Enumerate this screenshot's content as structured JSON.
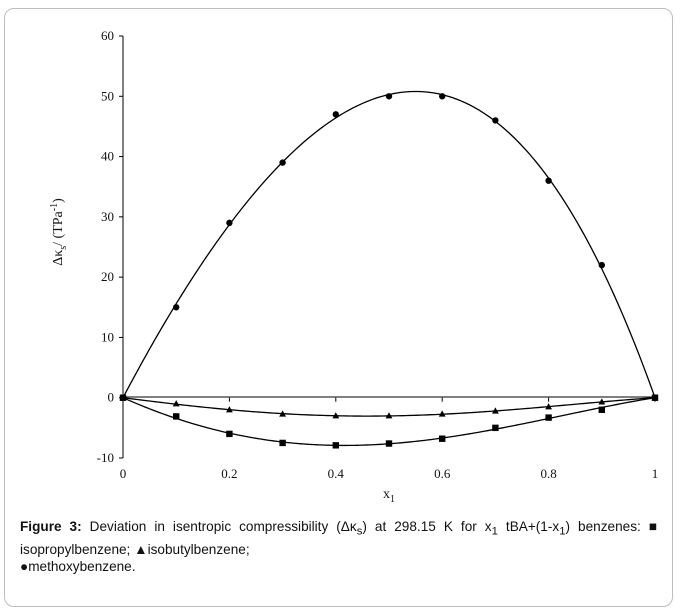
{
  "caption": {
    "label": "Figure 3:",
    "line1": "Deviation in isentropic compressibility (Δκ",
    "line1_sub": "s",
    "line1_end": ") at 298.15 K",
    "line2a": "for x",
    "line2_sub1": "1",
    "line2b": " tBA+(1-x",
    "line2_sub2": "1",
    "line2c": ") benzenes: ■ isopropylbenzene; ▲isobutylbenzene;",
    "line3": "●methoxybenzene."
  },
  "chart_data": {
    "type": "scatter",
    "xlabel": "x",
    "xlabel_sub": "1",
    "ylabel": "Δκ",
    "ylabel_sub": "s",
    "ylabel_end": "/ (TPa",
    "ylabel_sup": "-1",
    "ylabel_close": ")",
    "xlim": [
      0,
      1
    ],
    "ylim": [
      -10,
      60
    ],
    "xticks": [
      0,
      0.2,
      0.4,
      0.6,
      0.8,
      1
    ],
    "xtick_labels": [
      "0",
      "0.2",
      "0.4",
      "0.6",
      "0.8",
      "1"
    ],
    "yticks": [
      -10,
      0,
      10,
      20,
      30,
      40,
      50,
      60
    ],
    "ytick_labels": [
      "-10",
      "0",
      "10",
      "20",
      "30",
      "40",
      "50",
      "60"
    ],
    "grid": false,
    "series": [
      {
        "name": "methoxybenzene",
        "marker": "circle",
        "color": "#000000",
        "x": [
          0,
          0.1,
          0.2,
          0.3,
          0.4,
          0.5,
          0.6,
          0.7,
          0.8,
          0.9,
          1
        ],
        "y": [
          0,
          15,
          29,
          39,
          47,
          50,
          50,
          46,
          36,
          22,
          0
        ]
      },
      {
        "name": "isobutylbenzene",
        "marker": "triangle",
        "color": "#000000",
        "x": [
          0,
          0.1,
          0.2,
          0.3,
          0.4,
          0.5,
          0.6,
          0.7,
          0.8,
          0.9,
          1
        ],
        "y": [
          0,
          -1.0,
          -2.0,
          -2.7,
          -3.0,
          -3.0,
          -2.7,
          -2.2,
          -1.5,
          -0.7,
          0
        ]
      },
      {
        "name": "isopropylbenzene",
        "marker": "square",
        "color": "#000000",
        "x": [
          0,
          0.1,
          0.2,
          0.3,
          0.4,
          0.5,
          0.6,
          0.7,
          0.8,
          0.9,
          1
        ],
        "y": [
          0,
          -3.1,
          -6.0,
          -7.5,
          -7.9,
          -7.6,
          -6.8,
          -5.0,
          -3.3,
          -2.0,
          0
        ]
      }
    ]
  }
}
